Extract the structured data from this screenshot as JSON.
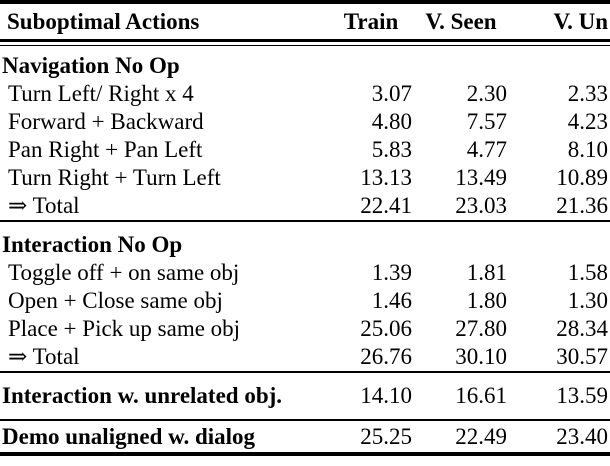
{
  "table": {
    "header": {
      "col0": "Suboptimal Actions",
      "col1": "Train",
      "col2": "V. Seen",
      "col3": "V. Un"
    },
    "sections": [
      {
        "title": "Navigation No Op",
        "rows": [
          {
            "label": "Turn Left/ Right x 4",
            "train": "3.07",
            "vseen": "2.30",
            "vun": "2.33"
          },
          {
            "label": "Forward + Backward",
            "train": "4.80",
            "vseen": "7.57",
            "vun": "4.23"
          },
          {
            "label": "Pan Right + Pan Left",
            "train": "5.83",
            "vseen": "4.77",
            "vun": "8.10"
          },
          {
            "label": "Turn Right + Turn Left",
            "train": "13.13",
            "vseen": "13.49",
            "vun": "10.89"
          },
          {
            "label": "⇒ Total",
            "train": "22.41",
            "vseen": "23.03",
            "vun": "21.36"
          }
        ]
      },
      {
        "title": "Interaction No Op",
        "rows": [
          {
            "label": "Toggle off + on same obj",
            "train": "1.39",
            "vseen": "1.81",
            "vun": "1.58"
          },
          {
            "label": "Open + Close same obj",
            "train": "1.46",
            "vseen": "1.80",
            "vun": "1.30"
          },
          {
            "label": "Place + Pick up same obj",
            "train": "25.06",
            "vseen": "27.80",
            "vun": "28.34"
          },
          {
            "label": "⇒ Total",
            "train": "26.76",
            "vseen": "30.10",
            "vun": "30.57"
          }
        ]
      }
    ],
    "summary_rows": [
      {
        "label": "Interaction w. unrelated obj.",
        "train": "14.10",
        "vseen": "16.61",
        "vun": "13.59"
      },
      {
        "label": "Demo unaligned w. dialog",
        "train": "25.25",
        "vseen": "22.49",
        "vun": "23.40"
      }
    ],
    "text_color": "#000000",
    "background_color": "#ffffff"
  }
}
